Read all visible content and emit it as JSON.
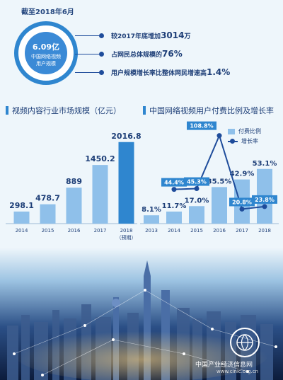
{
  "header": {
    "date": "截至2018年6月"
  },
  "summary": {
    "value": "6.09亿",
    "label_line1": "中国网络视频",
    "label_line2": "用户规模",
    "stats": [
      {
        "prefix": "较2017年底增加",
        "highlight": "3014",
        "suffix": "万"
      },
      {
        "prefix": "占网民总体规模的",
        "highlight": "76%",
        "suffix": ""
      },
      {
        "prefix": "用户规模增长率比整体网民增速高",
        "highlight": "1.4%",
        "suffix": ""
      }
    ]
  },
  "chart_data": [
    {
      "type": "bar",
      "title": "视频内容行业市场规模（亿元）",
      "categories": [
        "2014",
        "2015",
        "2016",
        "2017",
        "2018"
      ],
      "category_sublabels": [
        "",
        "",
        "",
        "",
        "（预期）"
      ],
      "values": [
        298.1,
        478.7,
        889,
        1450.2,
        2016.8
      ],
      "value_labels": [
        "298.1",
        "478.7",
        "889",
        "1450.2",
        "2016.8"
      ],
      "ylim": [
        0,
        2100
      ],
      "colors": [
        "#8fc0ea",
        "#8fc0ea",
        "#8fc0ea",
        "#8fc0ea",
        "#2f86cf"
      ]
    },
    {
      "type": "bar",
      "title": "中国网络视频用户付费比例及增长率",
      "categories": [
        "2013",
        "2014",
        "2015",
        "2016",
        "2017",
        "2018"
      ],
      "series": [
        {
          "name": "付费比例",
          "type": "bar",
          "values": [
            8.1,
            11.7,
            17.0,
            35.5,
            42.9,
            53.1
          ],
          "value_labels": [
            "8.1%",
            "11.7%",
            "17.0%",
            "35.5%",
            "42.9%",
            "53.1%"
          ]
        },
        {
          "name": "增长率",
          "type": "line",
          "values": [
            null,
            44.4,
            45.3,
            108.8,
            20.8,
            23.8
          ],
          "value_labels": [
            "",
            "44.4%",
            "45.3%",
            "108.8%",
            "20.8%",
            "23.8%"
          ]
        }
      ],
      "colors": {
        "bar": "#8fc0ea",
        "line": "#1e4c9b",
        "label_box": "#2f86cf"
      }
    }
  ],
  "footer": {
    "watermark": "中国产业经济信息网",
    "url": "www.cinic.org.cn"
  }
}
